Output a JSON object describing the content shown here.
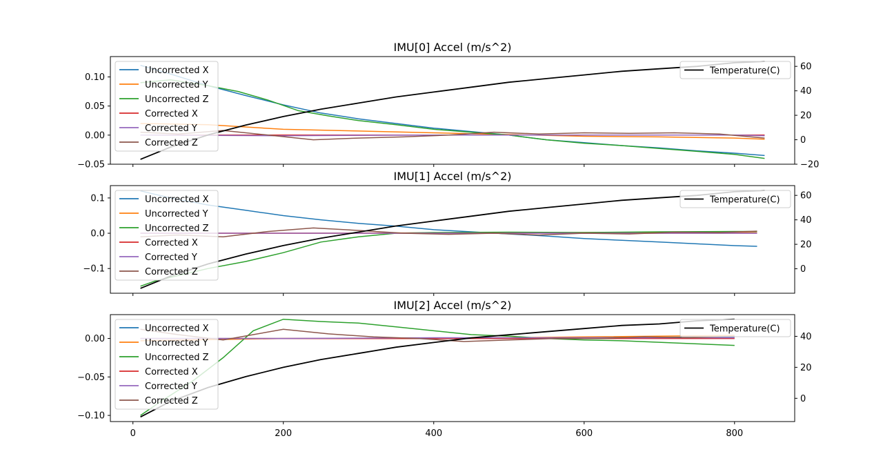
{
  "colors": {
    "uncorrected_x": "#1f77b4",
    "uncorrected_y": "#ff7f0e",
    "uncorrected_z": "#2ca02c",
    "corrected_x": "#d62728",
    "corrected_y": "#9467bd",
    "corrected_z": "#8c564b",
    "temperature": "#000000"
  },
  "chart_data": [
    {
      "type": "line",
      "title": "IMU[0] Accel (m/s^2)",
      "xlim": [
        -30,
        880
      ],
      "ylim": [
        -0.05,
        0.135
      ],
      "y_ticks": [
        -0.05,
        0.0,
        0.05,
        0.1
      ],
      "y_tick_labels": [
        "−0.05",
        "0.00",
        "0.05",
        "0.10"
      ],
      "y2lim": [
        -20,
        68
      ],
      "y2_ticks": [
        -20,
        0,
        20,
        40,
        60
      ],
      "y2_tick_labels": [
        "−20",
        "0",
        "20",
        "40",
        "60"
      ],
      "x_ticks": [
        0,
        200,
        400,
        600,
        800
      ],
      "x_tick_labels": [
        "0",
        "200",
        "400",
        "600",
        "800"
      ],
      "show_x_tick_labels": false,
      "legend_left": "top-left",
      "legend_right": "top-right",
      "series": [
        {
          "name": "Uncorrected X",
          "color_key": "uncorrected_x",
          "x": [
            10,
            50,
            100,
            150,
            200,
            250,
            300,
            350,
            400,
            450,
            500,
            550,
            600,
            650,
            700,
            750,
            800,
            840
          ],
          "y": [
            0.12,
            0.105,
            0.085,
            0.068,
            0.052,
            0.038,
            0.028,
            0.02,
            0.012,
            0.006,
            0.0,
            -0.008,
            -0.013,
            -0.018,
            -0.022,
            -0.027,
            -0.031,
            -0.035
          ]
        },
        {
          "name": "Uncorrected Y",
          "color_key": "uncorrected_y",
          "x": [
            10,
            100,
            200,
            300,
            400,
            500,
            600,
            700,
            800,
            840
          ],
          "y": [
            0.02,
            0.018,
            0.01,
            0.007,
            0.004,
            0.001,
            -0.002,
            -0.003,
            -0.005,
            -0.007
          ]
        },
        {
          "name": "Uncorrected Z",
          "color_key": "uncorrected_z",
          "x": [
            10,
            50,
            100,
            140,
            180,
            220,
            260,
            300,
            350,
            400,
            450,
            500,
            550,
            600,
            650,
            700,
            750,
            800,
            840
          ],
          "y": [
            0.09,
            0.095,
            0.085,
            0.075,
            0.06,
            0.042,
            0.033,
            0.025,
            0.018,
            0.01,
            0.005,
            0.0,
            -0.008,
            -0.014,
            -0.018,
            -0.023,
            -0.028,
            -0.033,
            -0.04
          ]
        },
        {
          "name": "Corrected X",
          "color_key": "corrected_x",
          "x": [
            10,
            200,
            400,
            600,
            800,
            840
          ],
          "y": [
            0.0,
            0.0,
            0.0,
            0.0,
            0.0,
            0.0
          ]
        },
        {
          "name": "Corrected Y",
          "color_key": "corrected_y",
          "x": [
            10,
            200,
            400,
            600,
            800,
            840
          ],
          "y": [
            0.0,
            -0.001,
            0.0,
            0.0,
            0.0,
            -0.001
          ]
        },
        {
          "name": "Corrected Z",
          "color_key": "corrected_z",
          "x": [
            10,
            60,
            120,
            180,
            240,
            300,
            360,
            420,
            480,
            540,
            600,
            660,
            720,
            780,
            840
          ],
          "y": [
            0.005,
            0.002,
            0.008,
            0.0,
            -0.008,
            -0.005,
            -0.003,
            0.0,
            0.005,
            0.002,
            0.004,
            0.003,
            0.004,
            0.002,
            -0.005
          ]
        }
      ],
      "temperature": {
        "name": "Temperature(C)",
        "color_key": "temperature",
        "x": [
          10,
          50,
          100,
          150,
          200,
          250,
          300,
          350,
          400,
          450,
          500,
          550,
          600,
          650,
          700,
          750,
          800,
          840
        ],
        "y": [
          -16,
          -6,
          4,
          12,
          19,
          25,
          30,
          35,
          39,
          43,
          47,
          50,
          53,
          56,
          58,
          60,
          63,
          64
        ]
      }
    },
    {
      "type": "line",
      "title": "IMU[1] Accel (m/s^2)",
      "xlim": [
        -30,
        880
      ],
      "ylim": [
        -0.17,
        0.135
      ],
      "y_ticks": [
        -0.1,
        0.0,
        0.1
      ],
      "y_tick_labels": [
        "−0.1",
        "0.0",
        "0.1"
      ],
      "y2lim": [
        -20,
        68
      ],
      "y2_ticks": [
        0,
        20,
        40,
        60
      ],
      "y2_tick_labels": [
        "0",
        "20",
        "40",
        "60"
      ],
      "x_ticks": [
        0,
        200,
        400,
        600,
        800
      ],
      "x_tick_labels": [
        "0",
        "200",
        "400",
        "600",
        "800"
      ],
      "show_x_tick_labels": false,
      "legend_left": "top-left",
      "legend_right": "top-right",
      "series": [
        {
          "name": "Uncorrected X",
          "color_key": "uncorrected_x",
          "x": [
            10,
            50,
            100,
            150,
            200,
            250,
            300,
            350,
            400,
            450,
            500,
            550,
            600,
            650,
            700,
            750,
            800,
            830
          ],
          "y": [
            0.12,
            0.1,
            0.08,
            0.065,
            0.05,
            0.038,
            0.028,
            0.02,
            0.01,
            0.004,
            -0.002,
            -0.008,
            -0.015,
            -0.02,
            -0.025,
            -0.03,
            -0.035,
            -0.037
          ]
        },
        {
          "name": "Uncorrected Y",
          "color_key": "uncorrected_y",
          "x": [
            10,
            200,
            400,
            600,
            800,
            830
          ],
          "y": [
            0.0,
            0.0,
            0.001,
            0.002,
            0.003,
            0.004
          ]
        },
        {
          "name": "Uncorrected Z",
          "color_key": "uncorrected_z",
          "x": [
            10,
            30,
            60,
            100,
            150,
            200,
            250,
            300,
            350,
            400,
            500,
            600,
            700,
            800,
            830
          ],
          "y": [
            -0.15,
            -0.135,
            -0.12,
            -0.1,
            -0.08,
            -0.055,
            -0.025,
            -0.01,
            0.0,
            0.002,
            0.003,
            0.002,
            0.004,
            0.005,
            0.005
          ]
        },
        {
          "name": "Corrected X",
          "color_key": "corrected_x",
          "x": [
            10,
            200,
            400,
            600,
            800,
            830
          ],
          "y": [
            0.0,
            0.0,
            0.0,
            0.0,
            0.0,
            0.0
          ]
        },
        {
          "name": "Corrected Y",
          "color_key": "corrected_y",
          "x": [
            10,
            200,
            400,
            600,
            800,
            830
          ],
          "y": [
            0.0,
            0.0,
            0.0,
            0.0,
            0.0,
            0.0
          ]
        },
        {
          "name": "Corrected Z",
          "color_key": "corrected_z",
          "x": [
            10,
            60,
            120,
            180,
            240,
            300,
            360,
            420,
            480,
            540,
            600,
            660,
            720,
            780,
            830
          ],
          "y": [
            -0.01,
            -0.005,
            -0.01,
            0.005,
            0.015,
            0.008,
            0.0,
            -0.003,
            0.0,
            -0.005,
            0.0,
            -0.002,
            0.003,
            0.002,
            0.006
          ]
        }
      ],
      "temperature": {
        "name": "Temperature(C)",
        "color_key": "temperature",
        "x": [
          10,
          50,
          100,
          150,
          200,
          250,
          300,
          350,
          400,
          450,
          500,
          550,
          600,
          650,
          700,
          750,
          800,
          840
        ],
        "y": [
          -16,
          -6,
          4,
          12,
          19,
          25,
          30,
          35,
          39,
          43,
          47,
          50,
          53,
          56,
          58,
          60,
          63,
          64
        ]
      }
    },
    {
      "type": "line",
      "title": "IMU[2] Accel (m/s^2)",
      "xlim": [
        -30,
        880
      ],
      "ylim": [
        -0.108,
        0.031
      ],
      "y_ticks": [
        -0.1,
        -0.05,
        0.0
      ],
      "y_tick_labels": [
        "−0.10",
        "−0.05",
        "0.00"
      ],
      "y2lim": [
        -15,
        54
      ],
      "y2_ticks": [
        0,
        20,
        40
      ],
      "y2_tick_labels": [
        "0",
        "20",
        "40"
      ],
      "x_ticks": [
        0,
        200,
        400,
        600,
        800
      ],
      "x_tick_labels": [
        "0",
        "200",
        "400",
        "600",
        "800"
      ],
      "show_x_tick_labels": true,
      "legend_left": "top-left",
      "legend_right": "top-right",
      "series": [
        {
          "name": "Uncorrected X",
          "color_key": "uncorrected_x",
          "x": [
            10,
            200,
            400,
            600,
            800
          ],
          "y": [
            0.0,
            0.0,
            0.0,
            0.001,
            0.002
          ]
        },
        {
          "name": "Uncorrected Y",
          "color_key": "uncorrected_y",
          "x": [
            10,
            200,
            400,
            600,
            800
          ],
          "y": [
            -0.003,
            0.0,
            0.0,
            0.002,
            0.004
          ]
        },
        {
          "name": "Uncorrected Z",
          "color_key": "uncorrected_z",
          "x": [
            10,
            40,
            80,
            120,
            160,
            200,
            250,
            300,
            350,
            400,
            450,
            500,
            550,
            600,
            650,
            700,
            750,
            800
          ],
          "y": [
            -0.1,
            -0.08,
            -0.055,
            -0.025,
            0.01,
            0.025,
            0.022,
            0.02,
            0.015,
            0.01,
            0.005,
            0.003,
            0.0,
            -0.002,
            -0.003,
            -0.005,
            -0.007,
            -0.009
          ]
        },
        {
          "name": "Corrected X",
          "color_key": "corrected_x",
          "x": [
            10,
            200,
            400,
            600,
            800
          ],
          "y": [
            0.0,
            0.0,
            0.0,
            0.0,
            0.0
          ]
        },
        {
          "name": "Corrected Y",
          "color_key": "corrected_y",
          "x": [
            10,
            200,
            400,
            600,
            800
          ],
          "y": [
            0.0,
            0.0,
            0.001,
            0.001,
            0.001
          ]
        },
        {
          "name": "Corrected Z",
          "color_key": "corrected_z",
          "x": [
            10,
            60,
            120,
            160,
            200,
            260,
            320,
            380,
            440,
            500,
            560,
            620,
            680,
            740,
            800
          ],
          "y": [
            0.012,
            0.005,
            -0.002,
            0.005,
            0.012,
            0.006,
            0.002,
            0.0,
            -0.004,
            -0.002,
            0.0,
            0.0,
            0.002,
            0.001,
            0.003
          ]
        }
      ],
      "temperature": {
        "name": "Temperature(C)",
        "color_key": "temperature",
        "x": [
          10,
          50,
          100,
          150,
          200,
          250,
          300,
          350,
          400,
          450,
          500,
          550,
          600,
          650,
          700,
          750,
          800
        ],
        "y": [
          -12,
          -2,
          7,
          14,
          20,
          25,
          29,
          33,
          36,
          39,
          41,
          43,
          45,
          47,
          48,
          50,
          51
        ]
      }
    }
  ]
}
